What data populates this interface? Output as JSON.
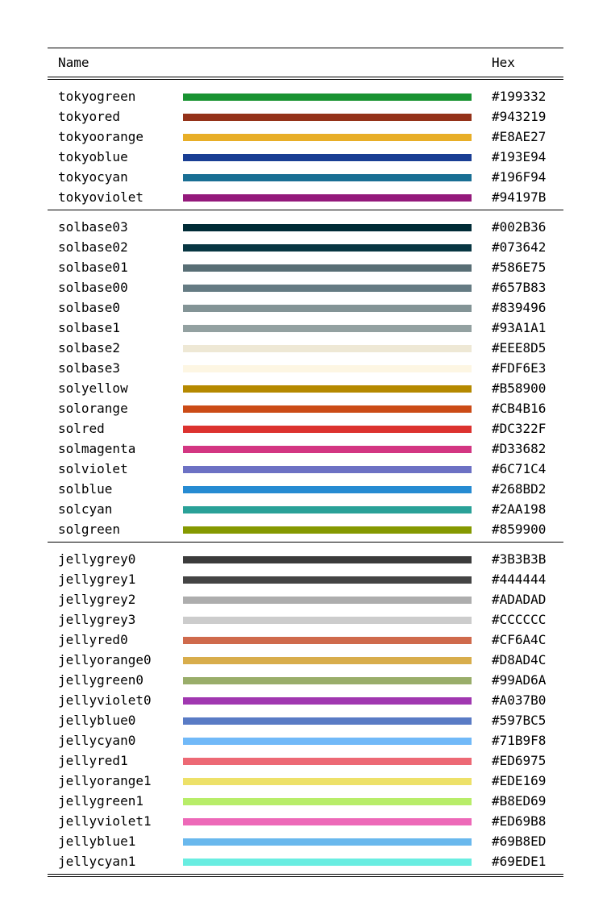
{
  "columns": {
    "name": "Name",
    "hex": "Hex"
  },
  "groups": [
    {
      "rows": [
        {
          "name": "tokyogreen",
          "hex": "#199332",
          "color": "#199332"
        },
        {
          "name": "tokyored",
          "hex": "#943219",
          "color": "#943219"
        },
        {
          "name": "tokyoorange",
          "hex": "#E8AE27",
          "color": "#E8AE27"
        },
        {
          "name": "tokyoblue",
          "hex": "#193E94",
          "color": "#193E94"
        },
        {
          "name": "tokyocyan",
          "hex": "#196F94",
          "color": "#196F94"
        },
        {
          "name": "tokyoviolet",
          "hex": "#94197B",
          "color": "#94197B"
        }
      ]
    },
    {
      "rows": [
        {
          "name": "solbase03",
          "hex": "#002B36",
          "color": "#002B36"
        },
        {
          "name": "solbase02",
          "hex": "#073642",
          "color": "#073642"
        },
        {
          "name": "solbase01",
          "hex": "#586E75",
          "color": "#586E75"
        },
        {
          "name": "solbase00",
          "hex": "#657B83",
          "color": "#657B83"
        },
        {
          "name": "solbase0",
          "hex": "#839496",
          "color": "#839496"
        },
        {
          "name": "solbase1",
          "hex": "#93A1A1",
          "color": "#93A1A1"
        },
        {
          "name": "solbase2",
          "hex": "#EEE8D5",
          "color": "#EEE8D5"
        },
        {
          "name": "solbase3",
          "hex": "#FDF6E3",
          "color": "#FDF6E3"
        },
        {
          "name": "solyellow",
          "hex": "#B58900",
          "color": "#B58900"
        },
        {
          "name": "solorange",
          "hex": "#CB4B16",
          "color": "#CB4B16"
        },
        {
          "name": "solred",
          "hex": "#DC322F",
          "color": "#DC322F"
        },
        {
          "name": "solmagenta",
          "hex": "#D33682",
          "color": "#D33682"
        },
        {
          "name": "solviolet",
          "hex": "#6C71C4",
          "color": "#6C71C4"
        },
        {
          "name": "solblue",
          "hex": "#268BD2",
          "color": "#268BD2"
        },
        {
          "name": "solcyan",
          "hex": "#2AA198",
          "color": "#2AA198"
        },
        {
          "name": "solgreen",
          "hex": "#859900",
          "color": "#859900"
        }
      ]
    },
    {
      "rows": [
        {
          "name": "jellygrey0",
          "hex": "#3B3B3B",
          "color": "#3B3B3B"
        },
        {
          "name": "jellygrey1",
          "hex": "#444444",
          "color": "#444444"
        },
        {
          "name": "jellygrey2",
          "hex": "#ADADAD",
          "color": "#ADADAD"
        },
        {
          "name": "jellygrey3",
          "hex": "#CCCCCC",
          "color": "#CCCCCC"
        },
        {
          "name": "jellyred0",
          "hex": "#CF6A4C",
          "color": "#CF6A4C"
        },
        {
          "name": "jellyorange0",
          "hex": "#D8AD4C",
          "color": "#D8AD4C"
        },
        {
          "name": "jellygreen0",
          "hex": "#99AD6A",
          "color": "#99AD6A"
        },
        {
          "name": "jellyviolet0",
          "hex": "#A037B0",
          "color": "#A037B0"
        },
        {
          "name": "jellyblue0",
          "hex": "#597BC5",
          "color": "#597BC5"
        },
        {
          "name": "jellycyan0",
          "hex": "#71B9F8",
          "color": "#71B9F8"
        },
        {
          "name": "jellyred1",
          "hex": "#ED6975",
          "color": "#ED6975"
        },
        {
          "name": "jellyorange1",
          "hex": "#EDE169",
          "color": "#EDE169"
        },
        {
          "name": "jellygreen1",
          "hex": "#B8ED69",
          "color": "#B8ED69"
        },
        {
          "name": "jellyviolet1",
          "hex": "#ED69B8",
          "color": "#ED69B8"
        },
        {
          "name": "jellyblue1",
          "hex": "#69B8ED",
          "color": "#69B8ED"
        },
        {
          "name": "jellycyan1",
          "hex": "#69EDE1",
          "color": "#69EDE1"
        }
      ]
    }
  ]
}
